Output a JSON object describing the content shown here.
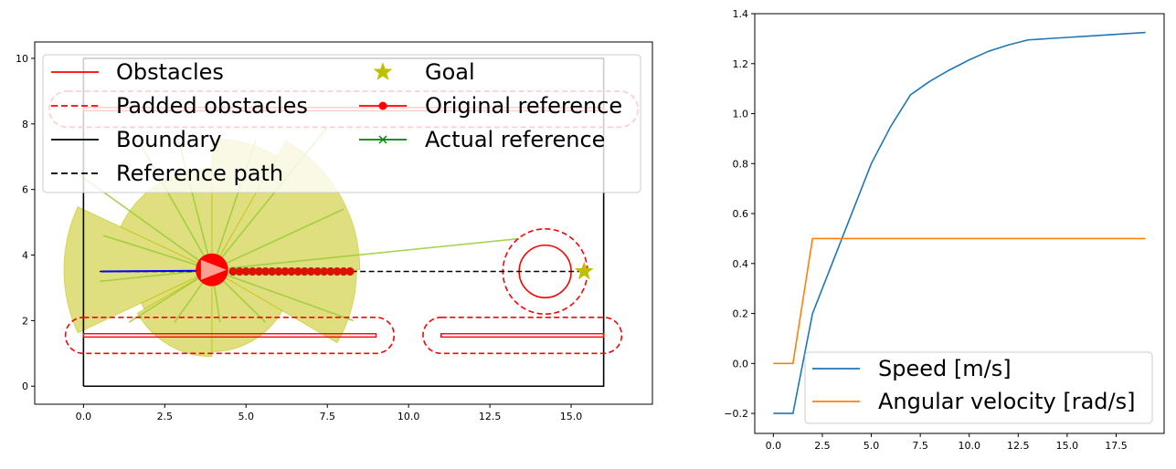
{
  "chart_data": [
    {
      "type": "scatter",
      "title": "",
      "xlabel": "",
      "ylabel": "",
      "xlim": [
        -1.5,
        17.5
      ],
      "ylim": [
        -0.55,
        10.5
      ],
      "xticks": [
        0.0,
        2.5,
        5.0,
        7.5,
        10.0,
        12.5,
        15.0
      ],
      "xtick_labels": [
        "0.0",
        "2.5",
        "5.0",
        "7.5",
        "10.0",
        "12.5",
        "15.0"
      ],
      "yticks": [
        0,
        2,
        4,
        6,
        8,
        10
      ],
      "ytick_labels": [
        "0",
        "2",
        "4",
        "6",
        "8",
        "10"
      ],
      "grid": false,
      "legend_placement": "top (two columns, inside axes)",
      "legend": [
        {
          "label": "Obstacles",
          "style": "solid-line",
          "color": "#ff0000"
        },
        {
          "label": "Goal",
          "style": "star",
          "color": "#bfbf00"
        },
        {
          "label": "Padded obstacles",
          "style": "dashed-line",
          "color": "#ff0000"
        },
        {
          "label": "Original reference",
          "style": "line-dot",
          "color": "#ff0000"
        },
        {
          "label": "Boundary",
          "style": "solid-line",
          "color": "#000000"
        },
        {
          "label": "Actual reference",
          "style": "line-x",
          "color": "#008000"
        },
        {
          "label": "Reference path",
          "style": "dashed-line",
          "color": "#000000"
        }
      ],
      "boundary": [
        [
          0,
          0
        ],
        [
          16,
          0
        ],
        [
          16,
          10
        ],
        [
          0,
          10
        ],
        [
          0,
          0
        ]
      ],
      "obstacles": [
        {
          "type": "rect",
          "x": [
            0,
            9
          ],
          "y": [
            1.5,
            1.6
          ]
        },
        {
          "type": "rect",
          "x": [
            11,
            16
          ],
          "y": [
            1.5,
            1.6
          ]
        },
        {
          "type": "rect",
          "x": [
            0,
            16
          ],
          "y": [
            8.4,
            8.5
          ]
        },
        {
          "type": "circle",
          "center": [
            14.2,
            3.5
          ],
          "radius": 0.8
        }
      ],
      "padded_obstacles": [
        {
          "type": "stadium",
          "x": [
            0,
            9
          ],
          "y": [
            1.0,
            2.1
          ]
        },
        {
          "type": "stadium",
          "x": [
            11,
            16
          ],
          "y": [
            1.0,
            2.1
          ]
        },
        {
          "type": "stadium",
          "x": [
            -0.5,
            16.5
          ],
          "y": [
            7.9,
            9.0
          ]
        },
        {
          "type": "circle",
          "center": [
            14.2,
            3.5
          ],
          "radius": 1.3
        }
      ],
      "reference_path": {
        "x": [
          0.5,
          15.4
        ],
        "y": [
          3.5,
          3.5
        ]
      },
      "goal": [
        15.4,
        3.5
      ],
      "robot": {
        "x": 3.95,
        "y": 3.55,
        "radius": 0.5,
        "heading_deg": 0
      },
      "original_reference": {
        "x": [
          4.6,
          4.8,
          5.0,
          5.2,
          5.4,
          5.6,
          5.8,
          6.0,
          6.2,
          6.4,
          6.6,
          6.8,
          7.0,
          7.2,
          7.4,
          7.6,
          7.8,
          8.0,
          8.2
        ],
        "y": [
          3.5,
          3.5,
          3.5,
          3.5,
          3.5,
          3.5,
          3.5,
          3.5,
          3.5,
          3.5,
          3.5,
          3.5,
          3.5,
          3.5,
          3.5,
          3.5,
          3.5,
          3.5,
          3.5
        ]
      },
      "actual_reference": {
        "x": [
          4.6,
          8.2
        ],
        "y": [
          3.5,
          3.5
        ]
      },
      "past_trajectory": {
        "x": [
          0.55,
          3.5
        ],
        "y": [
          3.5,
          3.52
        ]
      },
      "sensor_rays": [
        {
          "x": 13.4,
          "y": 4.5
        },
        {
          "x": 0.5,
          "y": 3.2
        },
        {
          "x": -0.2,
          "y": 6.5
        },
        {
          "x": 1.4,
          "y": 1.95
        },
        {
          "x": 2.8,
          "y": 1.95
        },
        {
          "x": 4.2,
          "y": 1.95
        },
        {
          "x": 5.6,
          "y": 1.95
        },
        {
          "x": 8.3,
          "y": 2.0
        },
        {
          "x": 0.6,
          "y": 4.6
        },
        {
          "x": 1.8,
          "y": 7.3
        },
        {
          "x": 2.9,
          "y": 7.6
        },
        {
          "x": 5.3,
          "y": 7.5
        },
        {
          "x": 7.5,
          "y": 7.9
        },
        {
          "x": 8.0,
          "y": 5.4
        }
      ],
      "sensor_sectors": [
        {
          "r": 4.55,
          "a1": 155,
          "a2": 205
        },
        {
          "r": 3.1,
          "a1": 90,
          "a2": 155
        },
        {
          "r": 4.0,
          "a1": 60,
          "a2": 90
        },
        {
          "r": 4.55,
          "a1": 0,
          "a2": 60
        },
        {
          "r": 4.45,
          "a1": -30,
          "a2": 0
        },
        {
          "r": 2.5,
          "a1": -90,
          "a2": -30
        },
        {
          "r": 2.65,
          "a1": -150,
          "a2": -90
        },
        {
          "r": 2.4,
          "a1": 205,
          "a2": 210
        }
      ],
      "colors": {
        "obstacle": "#ff0000",
        "boundary": "#000000",
        "goal": "#bfbf00",
        "ray": "#9acd32",
        "sector": "#bfbf00",
        "robot": "#ff0000",
        "robot_arrow": "#ff9f8f",
        "trajectory": "#0000ff",
        "actual_reference": "#008000"
      }
    },
    {
      "type": "line",
      "title": "",
      "xlabel": "",
      "ylabel": "",
      "xlim": [
        -0.95,
        19.95
      ],
      "ylim": [
        -0.28,
        1.4
      ],
      "xticks": [
        0.0,
        2.5,
        5.0,
        7.5,
        10.0,
        12.5,
        15.0,
        17.5
      ],
      "xtick_labels": [
        "0.0",
        "2.5",
        "5.0",
        "7.5",
        "10.0",
        "12.5",
        "15.0",
        "17.5"
      ],
      "yticks": [
        -0.2,
        0.0,
        0.2,
        0.4,
        0.6,
        0.8,
        1.0,
        1.2,
        1.4
      ],
      "ytick_labels": [
        "−0.2",
        "0.0",
        "0.2",
        "0.4",
        "0.6",
        "0.8",
        "1.0",
        "1.2",
        "1.4"
      ],
      "grid": false,
      "legend_placement": "lower-right",
      "x": [
        0,
        1,
        2,
        3,
        4,
        5,
        6,
        7,
        8,
        9,
        10,
        11,
        12,
        13,
        14,
        15,
        16,
        17,
        18,
        19
      ],
      "series": [
        {
          "name": "Speed [m/s]",
          "color": "#1f77b4",
          "values": [
            -0.2,
            -0.2,
            0.2,
            0.4,
            0.6,
            0.8,
            0.95,
            1.075,
            1.13,
            1.175,
            1.215,
            1.25,
            1.275,
            1.295,
            1.3,
            1.305,
            1.31,
            1.315,
            1.32,
            1.325
          ]
        },
        {
          "name": "Angular velocity [rad/s]",
          "color": "#ff7f0e",
          "values": [
            0.0,
            0.0,
            0.5,
            0.5,
            0.5,
            0.5,
            0.5,
            0.5,
            0.5,
            0.5,
            0.5,
            0.5,
            0.5,
            0.5,
            0.5,
            0.5,
            0.5,
            0.5,
            0.5,
            0.5
          ]
        }
      ]
    }
  ]
}
